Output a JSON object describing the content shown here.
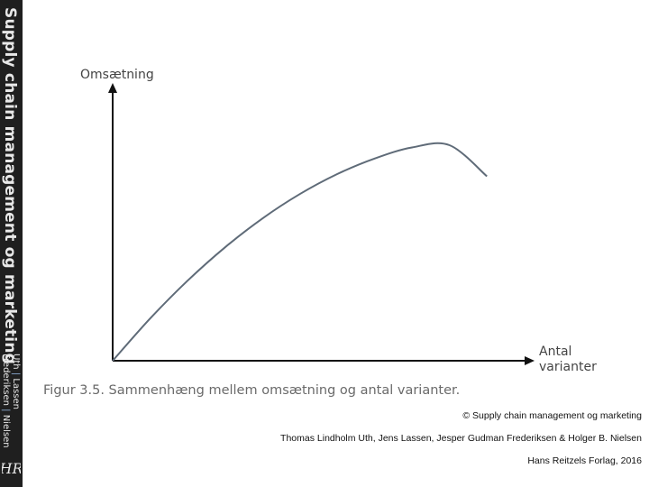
{
  "sidebar": {
    "title": "Supply chain management og marketing",
    "authors_line1": "Uth",
    "authors_sep1": "|",
    "authors_line1b": "Lassen",
    "authors_line2": "Frederiksen",
    "authors_sep2": "|",
    "authors_line2b": "Nielsen",
    "logo_text": "HR"
  },
  "figure": {
    "y_label": "Omsætning",
    "x_label_line1": "Antal",
    "x_label_line2": "varianter",
    "caption": "Figur 3.5. Sammenhæng mellem omsætning og antal varianter."
  },
  "chart_data": {
    "type": "line",
    "xlabel": "Antal varianter",
    "ylabel": "Omsætning",
    "x": [
      0,
      1,
      2,
      3,
      4,
      5,
      6,
      7,
      8,
      9,
      10
    ],
    "series": [
      {
        "values": [
          0,
          1.9,
          3.6,
          5.1,
          6.4,
          7.5,
          8.4,
          9.1,
          9.6,
          9.7,
          8.3
        ]
      }
    ],
    "xlim": [
      0,
      11.2
    ],
    "ylim": [
      0,
      12.5
    ],
    "grid": false,
    "colors": {
      "curve": "#5f6b78",
      "axis": "#111111"
    }
  },
  "footer": {
    "copyright": "© Supply chain management og marketing",
    "authors": "Thomas Lindholm Uth, Jens Lassen, Jesper Gudman Frederiksen & Holger B. Nielsen",
    "publisher": "Hans Reitzels Forlag, 2016"
  }
}
